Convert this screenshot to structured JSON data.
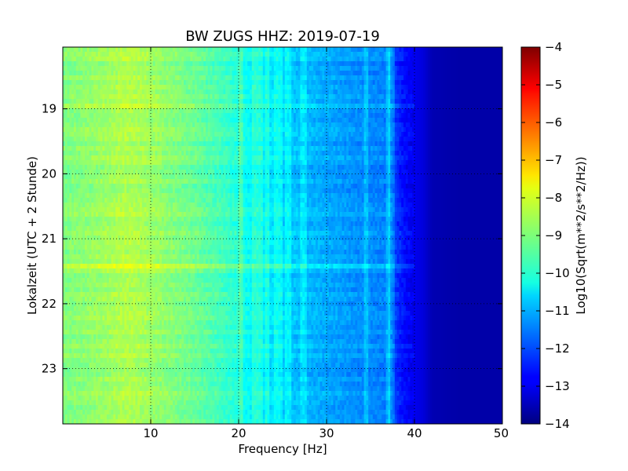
{
  "chart_data": {
    "type": "heatmap",
    "title": "BW ZUGS HHZ: 2019-07-19",
    "xlabel": "Frequency [Hz]",
    "ylabel": "Lokalzeit (UTC + 2 Stunde)",
    "xlim": [
      0,
      50
    ],
    "ylim": [
      18.05,
      23.85
    ],
    "y_inverted": true,
    "x_ticks": [
      10,
      20,
      30,
      40,
      50
    ],
    "y_ticks": [
      19,
      20,
      21,
      22,
      23
    ],
    "x_tick_labels": [
      "10",
      "20",
      "30",
      "40",
      "50"
    ],
    "y_tick_labels": [
      "19",
      "20",
      "21",
      "22",
      "23"
    ],
    "grid": true,
    "colormap": "jet",
    "colorbar": {
      "label": "Log10(Sqrt(m**2/s**2/Hz))",
      "min": -14,
      "max": -4,
      "ticks": [
        -4,
        -5,
        -6,
        -7,
        -8,
        -9,
        -10,
        -11,
        -12,
        -13,
        -14
      ],
      "tick_labels": [
        "−4",
        "−5",
        "−6",
        "−7",
        "−8",
        "−9",
        "−10",
        "−11",
        "−12",
        "−13",
        "−14"
      ]
    },
    "frequency_profile": {
      "frequency_hz": [
        0,
        2,
        5,
        7,
        9,
        12,
        15,
        18,
        20,
        21,
        23,
        25,
        27,
        30,
        33,
        35,
        37,
        38,
        39,
        40,
        41,
        42,
        45,
        50
      ],
      "log10_amplitude": [
        -9.0,
        -8.9,
        -8.7,
        -8.5,
        -8.6,
        -8.9,
        -9.2,
        -9.6,
        -9.9,
        -10.2,
        -10.4,
        -10.7,
        -10.9,
        -11.1,
        -11.3,
        -11.4,
        -11.5,
        -12.3,
        -12.7,
        -12.9,
        -13.1,
        -13.5,
        -13.6,
        -13.6
      ]
    },
    "narrowband_lines_hz": [
      20.3,
      21.8,
      22.4,
      23.2,
      24.3,
      24.8,
      25.6,
      27.4,
      34.5,
      37.0,
      37.4
    ]
  }
}
